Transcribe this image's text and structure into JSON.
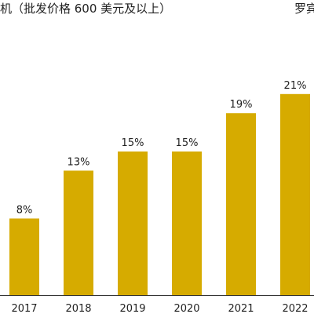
{
  "header": {
    "title": "机（批发价格 600 美元及以上）",
    "source": "罗宾"
  },
  "colors": {
    "bar": "#d6ab00",
    "axis": "#333333",
    "text": "#222222"
  },
  "chart_data": {
    "type": "bar",
    "title": "机（批发价格 600 美元及以上）",
    "categories": [
      "2017",
      "2018",
      "2019",
      "2020",
      "2021",
      "2022"
    ],
    "values": [
      8,
      13,
      15,
      15,
      19,
      21
    ],
    "data_labels": [
      "8%",
      "13%",
      "15%",
      "15%",
      "19%",
      "21%"
    ],
    "ylim": [
      0,
      25
    ],
    "grid": false,
    "xlabel": "",
    "ylabel": ""
  }
}
